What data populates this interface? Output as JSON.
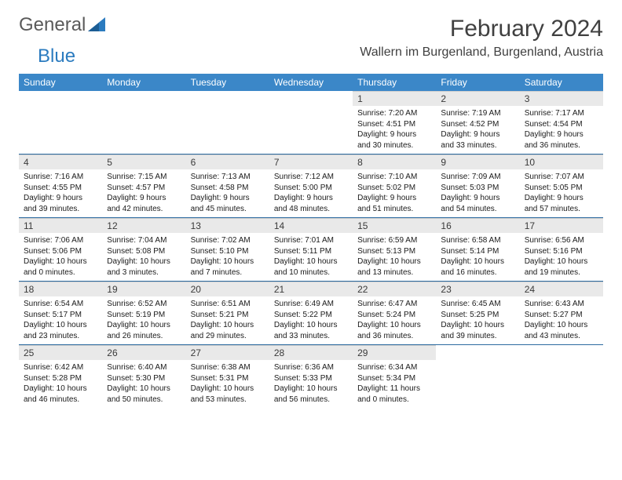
{
  "brand": {
    "part1": "General",
    "part2": "Blue"
  },
  "title": "February 2024",
  "location": "Wallern im Burgenland, Burgenland, Austria",
  "colors": {
    "header_bg": "#3b87c8",
    "header_text": "#ffffff",
    "daynum_bg": "#e9e9e9",
    "rule": "#2b6aa0",
    "brand_gray": "#5a5a5a",
    "brand_blue": "#2b7bbf"
  },
  "day_labels": [
    "Sunday",
    "Monday",
    "Tuesday",
    "Wednesday",
    "Thursday",
    "Friday",
    "Saturday"
  ],
  "weeks": [
    [
      null,
      null,
      null,
      null,
      {
        "n": "1",
        "sunrise": "7:20 AM",
        "sunset": "4:51 PM",
        "daylight": "9 hours and 30 minutes."
      },
      {
        "n": "2",
        "sunrise": "7:19 AM",
        "sunset": "4:52 PM",
        "daylight": "9 hours and 33 minutes."
      },
      {
        "n": "3",
        "sunrise": "7:17 AM",
        "sunset": "4:54 PM",
        "daylight": "9 hours and 36 minutes."
      }
    ],
    [
      {
        "n": "4",
        "sunrise": "7:16 AM",
        "sunset": "4:55 PM",
        "daylight": "9 hours and 39 minutes."
      },
      {
        "n": "5",
        "sunrise": "7:15 AM",
        "sunset": "4:57 PM",
        "daylight": "9 hours and 42 minutes."
      },
      {
        "n": "6",
        "sunrise": "7:13 AM",
        "sunset": "4:58 PM",
        "daylight": "9 hours and 45 minutes."
      },
      {
        "n": "7",
        "sunrise": "7:12 AM",
        "sunset": "5:00 PM",
        "daylight": "9 hours and 48 minutes."
      },
      {
        "n": "8",
        "sunrise": "7:10 AM",
        "sunset": "5:02 PM",
        "daylight": "9 hours and 51 minutes."
      },
      {
        "n": "9",
        "sunrise": "7:09 AM",
        "sunset": "5:03 PM",
        "daylight": "9 hours and 54 minutes."
      },
      {
        "n": "10",
        "sunrise": "7:07 AM",
        "sunset": "5:05 PM",
        "daylight": "9 hours and 57 minutes."
      }
    ],
    [
      {
        "n": "11",
        "sunrise": "7:06 AM",
        "sunset": "5:06 PM",
        "daylight": "10 hours and 0 minutes."
      },
      {
        "n": "12",
        "sunrise": "7:04 AM",
        "sunset": "5:08 PM",
        "daylight": "10 hours and 3 minutes."
      },
      {
        "n": "13",
        "sunrise": "7:02 AM",
        "sunset": "5:10 PM",
        "daylight": "10 hours and 7 minutes."
      },
      {
        "n": "14",
        "sunrise": "7:01 AM",
        "sunset": "5:11 PM",
        "daylight": "10 hours and 10 minutes."
      },
      {
        "n": "15",
        "sunrise": "6:59 AM",
        "sunset": "5:13 PM",
        "daylight": "10 hours and 13 minutes."
      },
      {
        "n": "16",
        "sunrise": "6:58 AM",
        "sunset": "5:14 PM",
        "daylight": "10 hours and 16 minutes."
      },
      {
        "n": "17",
        "sunrise": "6:56 AM",
        "sunset": "5:16 PM",
        "daylight": "10 hours and 19 minutes."
      }
    ],
    [
      {
        "n": "18",
        "sunrise": "6:54 AM",
        "sunset": "5:17 PM",
        "daylight": "10 hours and 23 minutes."
      },
      {
        "n": "19",
        "sunrise": "6:52 AM",
        "sunset": "5:19 PM",
        "daylight": "10 hours and 26 minutes."
      },
      {
        "n": "20",
        "sunrise": "6:51 AM",
        "sunset": "5:21 PM",
        "daylight": "10 hours and 29 minutes."
      },
      {
        "n": "21",
        "sunrise": "6:49 AM",
        "sunset": "5:22 PM",
        "daylight": "10 hours and 33 minutes."
      },
      {
        "n": "22",
        "sunrise": "6:47 AM",
        "sunset": "5:24 PM",
        "daylight": "10 hours and 36 minutes."
      },
      {
        "n": "23",
        "sunrise": "6:45 AM",
        "sunset": "5:25 PM",
        "daylight": "10 hours and 39 minutes."
      },
      {
        "n": "24",
        "sunrise": "6:43 AM",
        "sunset": "5:27 PM",
        "daylight": "10 hours and 43 minutes."
      }
    ],
    [
      {
        "n": "25",
        "sunrise": "6:42 AM",
        "sunset": "5:28 PM",
        "daylight": "10 hours and 46 minutes."
      },
      {
        "n": "26",
        "sunrise": "6:40 AM",
        "sunset": "5:30 PM",
        "daylight": "10 hours and 50 minutes."
      },
      {
        "n": "27",
        "sunrise": "6:38 AM",
        "sunset": "5:31 PM",
        "daylight": "10 hours and 53 minutes."
      },
      {
        "n": "28",
        "sunrise": "6:36 AM",
        "sunset": "5:33 PM",
        "daylight": "10 hours and 56 minutes."
      },
      {
        "n": "29",
        "sunrise": "6:34 AM",
        "sunset": "5:34 PM",
        "daylight": "11 hours and 0 minutes."
      },
      null,
      null
    ]
  ],
  "labels": {
    "sunrise": "Sunrise: ",
    "sunset": "Sunset: ",
    "daylight": "Daylight: "
  }
}
